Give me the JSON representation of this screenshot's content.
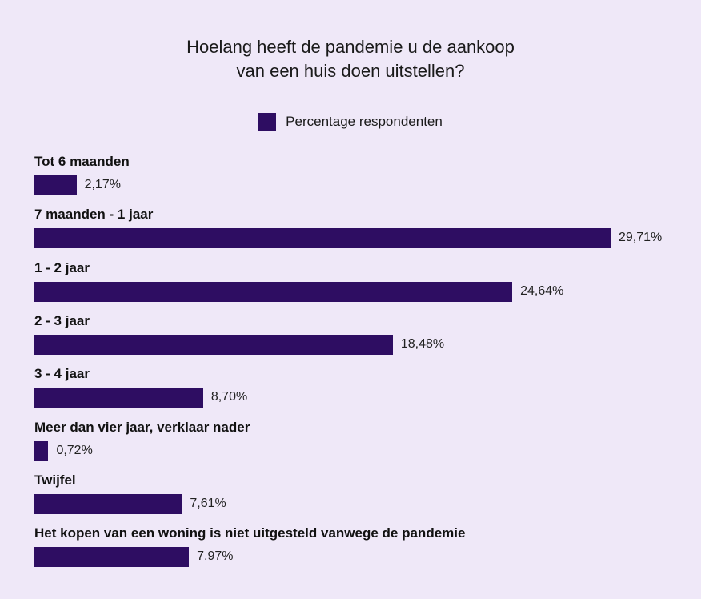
{
  "chart_data": {
    "type": "bar",
    "orientation": "horizontal",
    "title_lines": [
      "Hoelang heeft de pandemie u de aankoop",
      "van een huis doen uitstellen?"
    ],
    "legend": "Percentage respondenten",
    "legend_position": "top-center",
    "categories": [
      "Tot 6 maanden",
      "7 maanden - 1 jaar",
      "1 - 2 jaar",
      "2 - 3 jaar",
      "3 - 4 jaar",
      "Meer dan vier jaar, verklaar nader",
      "Twijfel",
      "Het kopen van een woning is niet uitgesteld vanwege de pandemie"
    ],
    "series": [
      {
        "name": "Percentage respondenten",
        "values": [
          2.17,
          29.71,
          24.64,
          18.48,
          8.7,
          0.72,
          7.61,
          7.97
        ]
      }
    ],
    "value_labels": [
      "2,17%",
      "29,71%",
      "24,64%",
      "18,48%",
      "8,70%",
      "0,72%",
      "7,61%",
      "7,97%"
    ],
    "xlim": [
      0,
      30
    ],
    "grid": false
  },
  "colors": {
    "background": "#efe8f8",
    "bar": "#2e0d62"
  }
}
